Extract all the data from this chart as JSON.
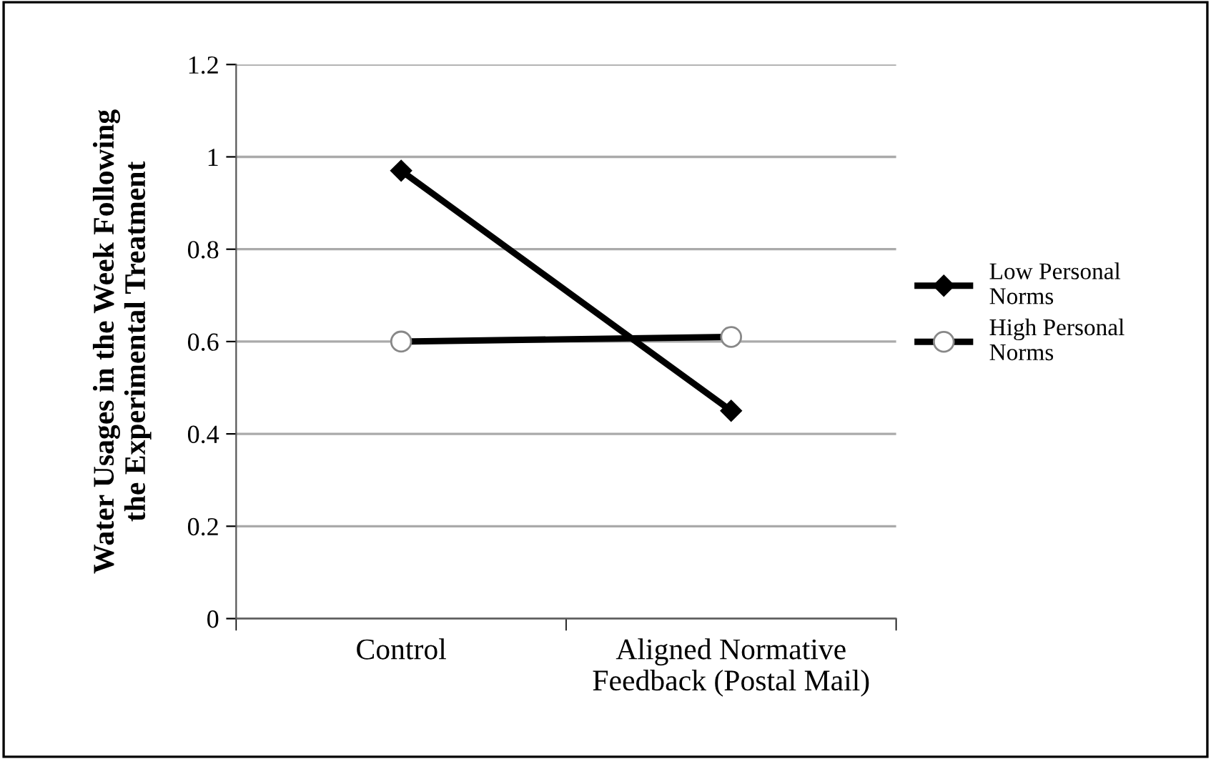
{
  "chart_data": {
    "type": "line",
    "ylabel": "Water Usages in the Week Following\nthe Experimental Treatment",
    "categories": [
      "Control",
      "Aligned Normative\nFeedback (Postal Mail)"
    ],
    "series": [
      {
        "name": "Low Personal\nNorms",
        "color": "#000000",
        "marker": "diamond",
        "values": [
          0.97,
          0.45
        ]
      },
      {
        "name": "High Personal\nNorms",
        "color": "#000000",
        "marker": "circle",
        "values": [
          0.6,
          0.61
        ]
      }
    ],
    "ylim": [
      0,
      1.2
    ],
    "yticks": [
      0,
      0.2,
      0.4,
      0.6,
      0.8,
      1,
      1.2
    ],
    "grid": "y",
    "legend": "right",
    "line_style": "solid"
  }
}
